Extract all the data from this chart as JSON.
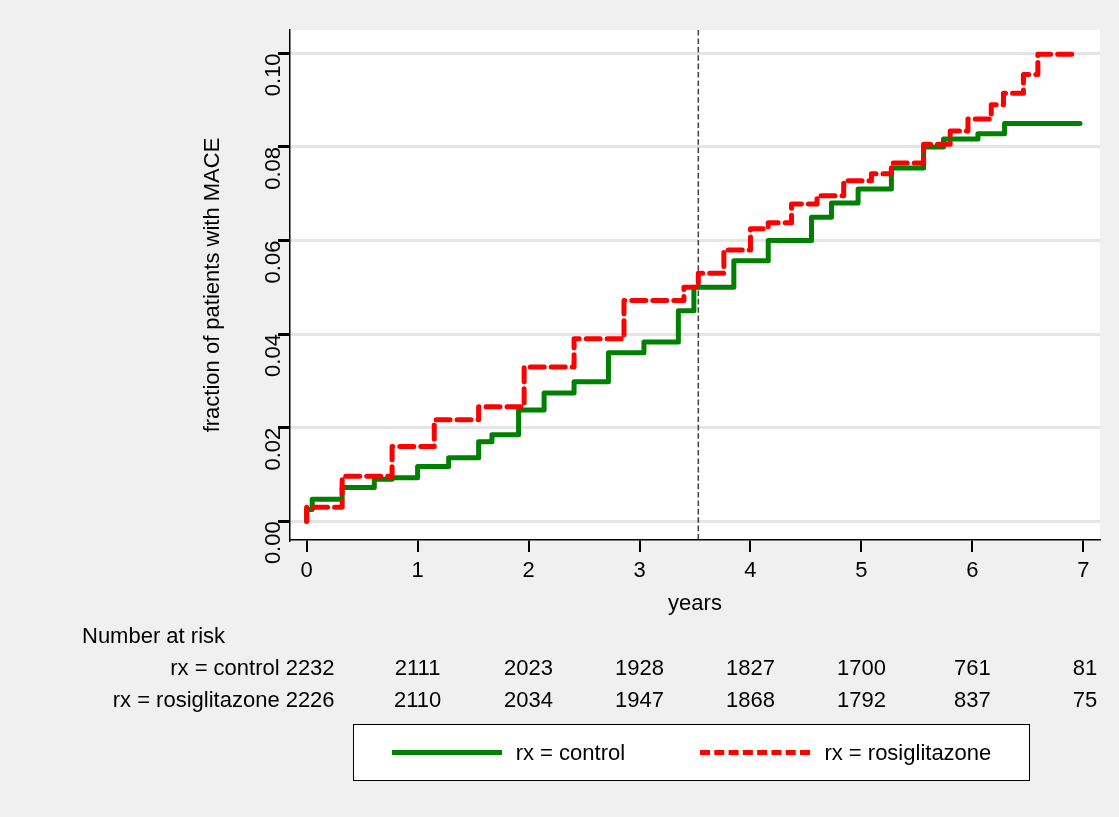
{
  "chart_data": {
    "type": "step",
    "xlabel": "years",
    "ylabel": "fraction of patients with MACE",
    "xlim": [
      -0.15,
      7.15
    ],
    "ylim": [
      -0.004,
      0.105
    ],
    "xticks": [
      0,
      1,
      2,
      3,
      4,
      5,
      6,
      7
    ],
    "yticks": [
      {
        "value": 0,
        "label": "0.00"
      },
      {
        "value": 0.02,
        "label": "0.02"
      },
      {
        "value": 0.04,
        "label": "0.04"
      },
      {
        "value": 0.06,
        "label": "0.06"
      },
      {
        "value": 0.08,
        "label": "0.08"
      },
      {
        "value": 0.1,
        "label": "0.10"
      }
    ],
    "grid": "y",
    "legend": "bottom",
    "series": [
      {
        "name": "rx = control",
        "color": "#008000",
        "line_style": "solid",
        "x": [
          0,
          0.05,
          0.32,
          0.61,
          0.77,
          1.0,
          1.28,
          1.55,
          1.67,
          1.91,
          2.14,
          2.41,
          2.72,
          3.04,
          3.35,
          3.49,
          3.85,
          4.16,
          4.55,
          4.73,
          4.97,
          5.27,
          5.56,
          5.74,
          6.05,
          6.29,
          6.5,
          6.97
        ],
        "values": [
          0,
          0.0025,
          0.0047,
          0.0072,
          0.009,
          0.0093,
          0.0117,
          0.0136,
          0.017,
          0.0185,
          0.0238,
          0.0274,
          0.0298,
          0.036,
          0.0383,
          0.045,
          0.05,
          0.0557,
          0.06,
          0.065,
          0.068,
          0.071,
          0.0755,
          0.08,
          0.0817,
          0.0828,
          0.085,
          0.085
        ]
      },
      {
        "name": "rx = rosiglitazone",
        "color": "#ff0000",
        "line_style": "dashed",
        "x": [
          0,
          0.32,
          0.77,
          1.15,
          1.55,
          1.96,
          2.41,
          2.86,
          3.4,
          3.53,
          3.76,
          4.0,
          4.16,
          4.37,
          4.6,
          4.84,
          5.09,
          5.27,
          5.56,
          5.8,
          5.96,
          6.17,
          6.28,
          6.46,
          6.59,
          6.68,
          6.93
        ],
        "values": [
          0,
          0.003,
          0.0096,
          0.016,
          0.0217,
          0.0245,
          0.033,
          0.039,
          0.0472,
          0.05,
          0.053,
          0.058,
          0.0625,
          0.0638,
          0.0678,
          0.0696,
          0.0728,
          0.0743,
          0.0766,
          0.0806,
          0.0834,
          0.086,
          0.089,
          0.0915,
          0.0955,
          0.0998,
          0.0998
        ]
      }
    ],
    "ref_lines": [
      {
        "axis": "x",
        "value": 3.53,
        "color": "#404040",
        "line_style": "dashed"
      }
    ],
    "annotations": [
      "Number at risk",
      "rx = control 2232 2111 2023 1928 1827 1700 761 81",
      "rx = rosiglitazone 2226 2110 2034 1947 1868 1792 837 75"
    ]
  }
}
